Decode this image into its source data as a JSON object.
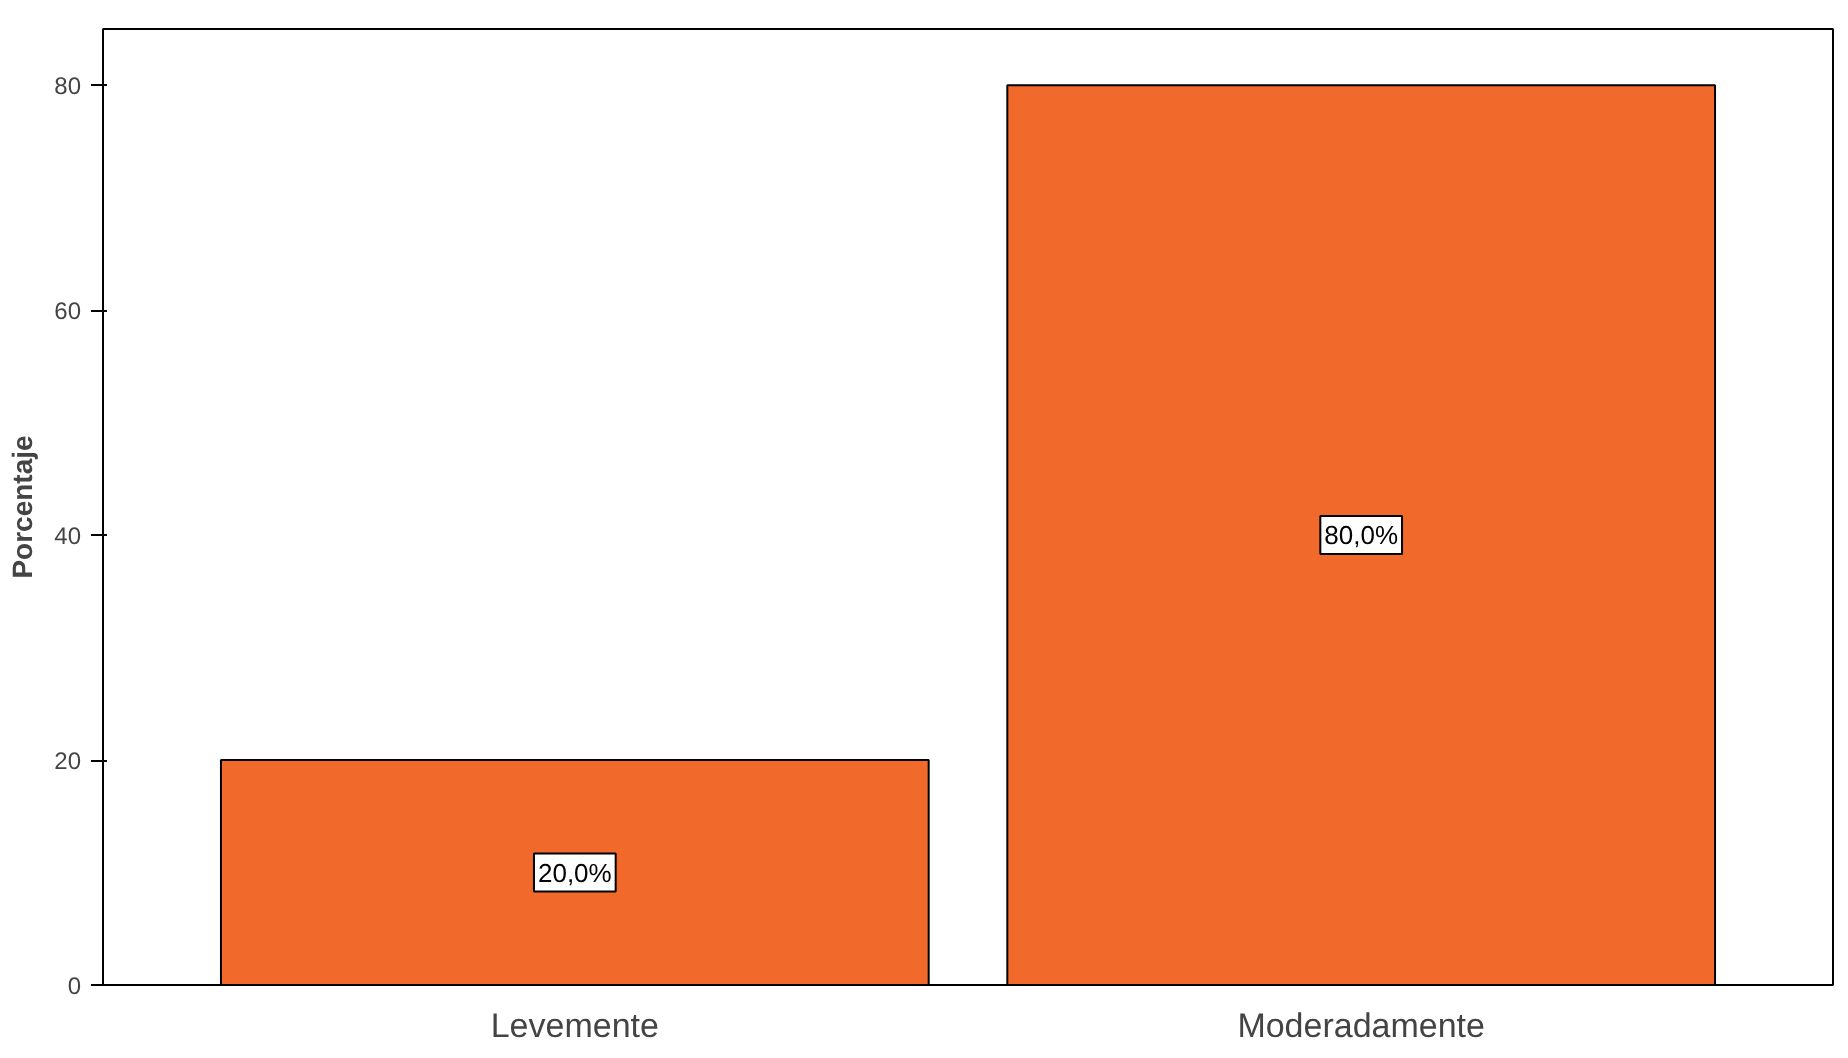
{
  "chart_data": {
    "type": "bar",
    "ylabel": "Porcentaje",
    "categories": [
      "Levemente",
      "Moderadamente"
    ],
    "values": [
      20,
      80
    ],
    "color": "#f26a2b",
    "value_labels": [
      "20,0%",
      "80,0%"
    ],
    "ylim": [
      0,
      85
    ],
    "yticks": [
      0,
      20,
      40,
      60,
      80
    ],
    "grid": false
  }
}
